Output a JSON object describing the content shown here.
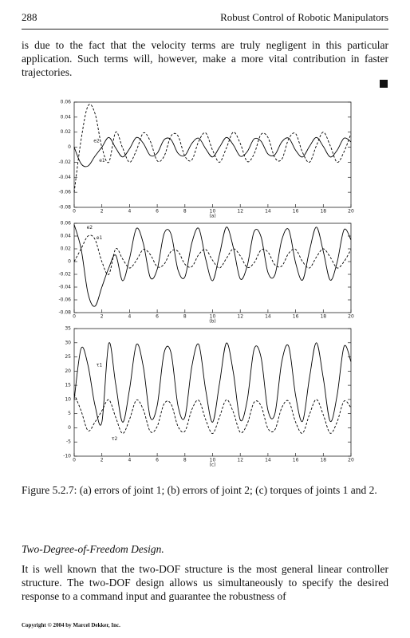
{
  "header": {
    "page": "288",
    "title": "Robust Control of Robotic Manipulators"
  },
  "paragraph": "is due to the fact that the velocity terms are truly negligent in this particular application. Such terms will, however, make a more vital contribution in faster trajectories.",
  "chart_data": [
    {
      "type": "line",
      "xlabel": "(a)",
      "x": [
        0,
        0.5,
        1,
        1.5,
        2,
        2.5,
        3,
        3.5,
        4,
        4.5,
        5,
        5.5,
        6,
        6.5,
        7,
        7.5,
        8,
        8.5,
        9,
        9.5,
        10,
        10.5,
        11,
        11.5,
        12,
        12.5,
        13,
        13.5,
        14,
        14.5,
        15,
        15.5,
        16,
        16.5,
        17,
        17.5,
        18,
        18.5,
        19,
        19.5,
        20
      ],
      "xlim": [
        0,
        20
      ],
      "xticks": [
        0,
        2,
        4,
        6,
        8,
        10,
        12,
        14,
        16,
        18,
        20
      ],
      "ylim": [
        -0.08,
        0.06
      ],
      "yticks": [
        -0.08,
        -0.06,
        -0.04,
        -0.02,
        0,
        0.02,
        0.04,
        0.06
      ],
      "series": [
        {
          "name": "e1",
          "color": "#000000",
          "style": "solid",
          "values": [
            0,
            -0.022,
            -0.025,
            -0.012,
            0,
            0.013,
            -0.001,
            -0.013,
            -0.002,
            0.013,
            0.005,
            -0.011,
            -0.008,
            0.01,
            0.01,
            -0.008,
            -0.011,
            0.005,
            0.012,
            -0.002,
            -0.013,
            0,
            0.013,
            0.003,
            -0.012,
            -0.006,
            0.011,
            0.008,
            -0.009,
            -0.01,
            0.007,
            0.012,
            -0.004,
            -0.013,
            0.001,
            0.013,
            0.001,
            -0.013,
            -0.004,
            0.012,
            0.007
          ]
        },
        {
          "name": "e2",
          "color": "#000000",
          "style": "dashed",
          "values": [
            -0.06,
            0.01,
            0.055,
            0.045,
            0,
            -0.02,
            0.02,
            -0.001,
            -0.02,
            -0.004,
            0.019,
            0.008,
            -0.018,
            -0.012,
            0.015,
            0.015,
            -0.012,
            -0.017,
            0.008,
            0.019,
            -0.004,
            -0.02,
            -0.001,
            0.02,
            0.005,
            -0.019,
            -0.009,
            0.017,
            0.013,
            -0.014,
            -0.016,
            0.011,
            0.018,
            -0.007,
            -0.02,
            0.002,
            0.02,
            0.002,
            -0.02,
            -0.006,
            0.018
          ]
        }
      ]
    },
    {
      "type": "line",
      "xlabel": "(b)",
      "x": [
        0,
        0.5,
        1,
        1.5,
        2,
        2.5,
        3,
        3.5,
        4,
        4.5,
        5,
        5.5,
        6,
        6.5,
        7,
        7.5,
        8,
        8.5,
        9,
        9.5,
        10,
        10.5,
        11,
        11.5,
        12,
        12.5,
        13,
        13.5,
        14,
        14.5,
        15,
        15.5,
        16,
        16.5,
        17,
        17.5,
        18,
        18.5,
        19,
        19.5,
        20
      ],
      "xlim": [
        0,
        20
      ],
      "xticks": [
        0,
        2,
        4,
        6,
        8,
        10,
        12,
        14,
        16,
        18,
        20
      ],
      "ylim": [
        -0.08,
        0.06
      ],
      "yticks": [
        -0.08,
        -0.06,
        -0.04,
        -0.02,
        0,
        0.02,
        0.04,
        0.06
      ],
      "series": [
        {
          "name": "e2",
          "color": "#000000",
          "style": "solid",
          "values": [
            0.058,
            0.02,
            -0.05,
            -0.07,
            -0.04,
            -0.01,
            0.01,
            -0.03,
            0.005,
            0.052,
            0.028,
            -0.025,
            -0.012,
            0.044,
            0.043,
            -0.013,
            -0.024,
            0.029,
            0.052,
            0.004,
            -0.03,
            0.011,
            0.054,
            0.022,
            -0.027,
            -0.007,
            0.047,
            0.039,
            -0.017,
            -0.021,
            0.034,
            0.05,
            -0.002,
            -0.029,
            0.017,
            0.054,
            0.016,
            -0.029,
            -0.001,
            0.05,
            0.034
          ]
        },
        {
          "name": "e1",
          "color": "#000000",
          "style": "dashed",
          "values": [
            0,
            0.02,
            0.04,
            0.035,
            0,
            -0.02,
            0.02,
            0.004,
            -0.01,
            0.002,
            0.019,
            0.011,
            -0.008,
            -0.004,
            0.016,
            0.016,
            -0.004,
            -0.008,
            0.011,
            0.019,
            0.002,
            -0.01,
            0.005,
            0.02,
            0.009,
            -0.009,
            -0.002,
            0.018,
            0.015,
            -0.005,
            -0.007,
            0.013,
            0.019,
            0,
            -0.01,
            0.007,
            0.02,
            0.007,
            -0.01,
            0,
            0.019
          ]
        }
      ]
    },
    {
      "type": "line",
      "xlabel": "(c)",
      "x": [
        0,
        0.5,
        1,
        1.5,
        2,
        2.5,
        3,
        3.5,
        4,
        4.5,
        5,
        5.5,
        6,
        6.5,
        7,
        7.5,
        8,
        8.5,
        9,
        9.5,
        10,
        10.5,
        11,
        11.5,
        12,
        12.5,
        13,
        13.5,
        14,
        14.5,
        15,
        15.5,
        16,
        16.5,
        17,
        17.5,
        18,
        18.5,
        19,
        19.5,
        20
      ],
      "xlim": [
        0,
        20
      ],
      "xticks": [
        0,
        2,
        4,
        6,
        8,
        10,
        12,
        14,
        16,
        18,
        20
      ],
      "ylim": [
        -10,
        35
      ],
      "yticks": [
        -10,
        -5,
        0,
        5,
        10,
        15,
        20,
        25,
        30,
        35
      ],
      "series": [
        {
          "name": "τ1",
          "color": "#000000",
          "style": "solid",
          "values": [
            10,
            28,
            22,
            8,
            2,
            29.8,
            15.4,
            2,
            13.6,
            29.4,
            21.4,
            3.7,
            7.9,
            26.5,
            26.4,
            7.8,
            3.8,
            21.6,
            29.4,
            13.4,
            2,
            15.6,
            29.9,
            19.5,
            2.8,
            9.6,
            27.7,
            24.9,
            6.2,
            4.9,
            23.3,
            28.7,
            11.4,
            2.3,
            17.6,
            30,
            17.5,
            2.3,
            11.5,
            28.7,
            23.3
          ]
        },
        {
          "name": "τ2",
          "color": "#000000",
          "style": "dashed",
          "values": [
            12,
            6,
            -1,
            2,
            6,
            9.9,
            3.7,
            -2,
            3,
            9.8,
            6.3,
            -1.3,
            0.5,
            8.5,
            8.4,
            0.5,
            -1.2,
            6.4,
            9.7,
            2.9,
            -2,
            3.8,
            9.9,
            5.5,
            -1.6,
            1.3,
            9,
            7.8,
            -0.2,
            -0.7,
            7.1,
            9.4,
            2,
            -1.9,
            4.7,
            10,
            4.6,
            -1.9,
            2.1,
            9.4,
            7.1
          ]
        }
      ]
    }
  ],
  "caption": "Figure 5.2.7: (a) errors of joint 1; (b) errors of joint 2; (c) torques of joints 1 and 2.",
  "section": {
    "heading": "Two-Degree-of-Freedom Design.",
    "text": "It is well known that the two-DOF structure is the most general linear controller structure. The two-DOF design allows us simultaneously to specify the desired response to a command input and guarantee the robustness of"
  },
  "footer": "Copyright © 2004 by Marcel Dekker, Inc."
}
